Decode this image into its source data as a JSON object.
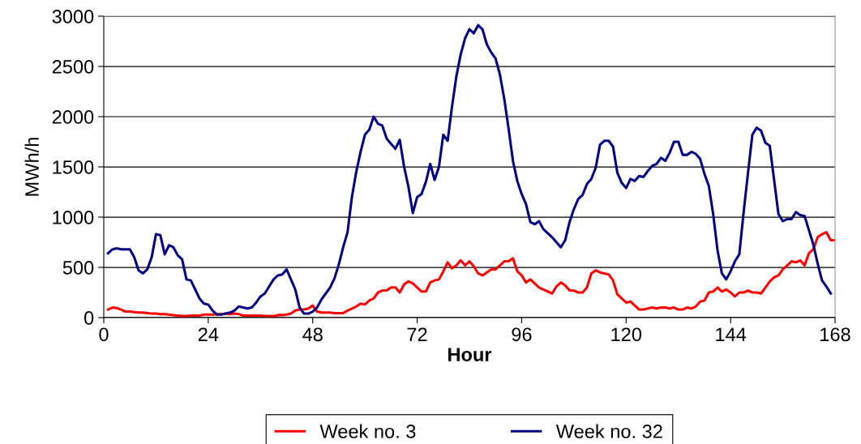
{
  "chart_data": {
    "type": "line",
    "xlabel": "Hour",
    "ylabel": "MWh/h",
    "xlim": [
      0,
      168
    ],
    "xticks": [
      0,
      24,
      48,
      72,
      96,
      120,
      144,
      168
    ],
    "ylim": [
      0,
      3000
    ],
    "yticks": [
      0,
      500,
      1000,
      1500,
      2000,
      2500,
      3000
    ],
    "grid": "y",
    "legend": "bottom",
    "marker": "none",
    "line_style": "solid",
    "series": [
      {
        "name": "Week no. 3",
        "color": "#ff0000",
        "x": [
          1,
          2,
          3,
          4,
          5,
          6,
          7,
          8,
          9,
          10,
          11,
          12,
          13,
          14,
          15,
          16,
          17,
          18,
          19,
          20,
          21,
          22,
          23,
          24,
          25,
          26,
          27,
          28,
          29,
          30,
          31,
          32,
          33,
          34,
          35,
          36,
          37,
          38,
          39,
          40,
          41,
          42,
          43,
          44,
          45,
          46,
          47,
          48,
          49,
          50,
          51,
          52,
          53,
          54,
          55,
          56,
          57,
          58,
          59,
          60,
          61,
          62,
          63,
          64,
          65,
          66,
          67,
          68,
          69,
          70,
          71,
          72,
          73,
          74,
          75,
          76,
          77,
          78,
          79,
          80,
          81,
          82,
          83,
          84,
          85,
          86,
          87,
          88,
          89,
          90,
          91,
          92,
          93,
          94,
          95,
          96,
          97,
          98,
          99,
          100,
          101,
          102,
          103,
          104,
          105,
          106,
          107,
          108,
          109,
          110,
          111,
          112,
          113,
          114,
          115,
          116,
          117,
          118,
          119,
          120,
          121,
          122,
          123,
          124,
          125,
          126,
          127,
          128,
          129,
          130,
          131,
          132,
          133,
          134,
          135,
          136,
          137,
          138,
          139,
          140,
          141,
          142,
          143,
          144,
          145,
          146,
          147,
          148,
          149,
          150,
          151,
          152,
          153,
          154,
          155,
          156,
          157,
          158,
          159,
          160,
          161,
          162,
          163,
          164,
          165,
          166,
          167,
          168
        ],
        "values": [
          80,
          100,
          95,
          80,
          60,
          60,
          55,
          50,
          50,
          45,
          40,
          40,
          35,
          35,
          30,
          25,
          20,
          15,
          15,
          20,
          20,
          20,
          30,
          30,
          30,
          35,
          35,
          40,
          35,
          40,
          35,
          20,
          20,
          20,
          20,
          20,
          15,
          15,
          15,
          25,
          25,
          30,
          40,
          70,
          80,
          80,
          90,
          120,
          60,
          50,
          50,
          50,
          45,
          45,
          45,
          70,
          90,
          110,
          140,
          130,
          170,
          190,
          250,
          270,
          270,
          300,
          300,
          250,
          330,
          360,
          340,
          300,
          260,
          260,
          350,
          370,
          380,
          460,
          550,
          490,
          520,
          570,
          520,
          560,
          510,
          440,
          420,
          450,
          480,
          480,
          520,
          560,
          560,
          590,
          460,
          420,
          350,
          380,
          340,
          300,
          280,
          260,
          240,
          310,
          350,
          320,
          270,
          270,
          250,
          250,
          300,
          440,
          470,
          450,
          440,
          430,
          370,
          230,
          190,
          150,
          160,
          120,
          80,
          80,
          90,
          100,
          90,
          100,
          100,
          90,
          100,
          80,
          80,
          100,
          90,
          110,
          160,
          170,
          250,
          260,
          300,
          260,
          280,
          250,
          210,
          250,
          250,
          270,
          250,
          250,
          240,
          300,
          360,
          400,
          420,
          480,
          520,
          560,
          550,
          570,
          520,
          640,
          680,
          800,
          830,
          850,
          770,
          770
        ]
      },
      {
        "name": "Week no. 32",
        "color": "#000080",
        "x": [
          1,
          2,
          3,
          4,
          5,
          6,
          7,
          8,
          9,
          10,
          11,
          12,
          13,
          14,
          15,
          16,
          17,
          18,
          19,
          20,
          21,
          22,
          23,
          24,
          25,
          26,
          27,
          28,
          29,
          30,
          31,
          32,
          33,
          34,
          35,
          36,
          37,
          38,
          39,
          40,
          41,
          42,
          43,
          44,
          45,
          46,
          47,
          48,
          49,
          50,
          51,
          52,
          53,
          54,
          55,
          56,
          57,
          58,
          59,
          60,
          61,
          62,
          63,
          64,
          65,
          66,
          67,
          68,
          69,
          70,
          71,
          72,
          73,
          74,
          75,
          76,
          77,
          78,
          79,
          80,
          81,
          82,
          83,
          84,
          85,
          86,
          87,
          88,
          89,
          90,
          91,
          92,
          93,
          94,
          95,
          96,
          97,
          98,
          99,
          100,
          101,
          102,
          103,
          104,
          105,
          106,
          107,
          108,
          109,
          110,
          111,
          112,
          113,
          114,
          115,
          116,
          117,
          118,
          119,
          120,
          121,
          122,
          123,
          124,
          125,
          126,
          127,
          128,
          129,
          130,
          131,
          132,
          133,
          134,
          135,
          136,
          137,
          138,
          139,
          140,
          141,
          142,
          143,
          144,
          145,
          146,
          147,
          148,
          149,
          150,
          151,
          152,
          153,
          154,
          155,
          156,
          157,
          158,
          159,
          160,
          161,
          162,
          163,
          164,
          165,
          166,
          167
        ],
        "values": [
          640,
          680,
          690,
          680,
          680,
          680,
          600,
          470,
          440,
          480,
          600,
          830,
          820,
          630,
          720,
          700,
          620,
          580,
          380,
          370,
          280,
          190,
          140,
          130,
          70,
          30,
          30,
          40,
          50,
          70,
          110,
          100,
          90,
          100,
          150,
          210,
          240,
          310,
          380,
          420,
          430,
          480,
          380,
          280,
          100,
          40,
          40,
          60,
          100,
          180,
          240,
          300,
          390,
          530,
          700,
          850,
          1200,
          1450,
          1650,
          1820,
          1870,
          2000,
          1930,
          1910,
          1780,
          1730,
          1680,
          1770,
          1500,
          1300,
          1040,
          1200,
          1230,
          1350,
          1530,
          1370,
          1500,
          1820,
          1760,
          2100,
          2400,
          2620,
          2780,
          2870,
          2830,
          2910,
          2870,
          2720,
          2640,
          2580,
          2420,
          2180,
          1880,
          1560,
          1360,
          1230,
          1130,
          950,
          930,
          960,
          880,
          840,
          800,
          750,
          700,
          770,
          950,
          1080,
          1180,
          1220,
          1330,
          1380,
          1490,
          1720,
          1760,
          1760,
          1700,
          1440,
          1340,
          1290,
          1380,
          1360,
          1410,
          1400,
          1460,
          1510,
          1530,
          1590,
          1560,
          1640,
          1750,
          1750,
          1620,
          1620,
          1650,
          1630,
          1580,
          1430,
          1310,
          1030,
          670,
          440,
          380,
          460,
          560,
          630,
          1050,
          1440,
          1820,
          1890,
          1860,
          1740,
          1710,
          1370,
          1030,
          960,
          980,
          980,
          1050,
          1020,
          1010,
          870,
          730,
          540,
          370,
          310,
          240
        ]
      }
    ]
  }
}
